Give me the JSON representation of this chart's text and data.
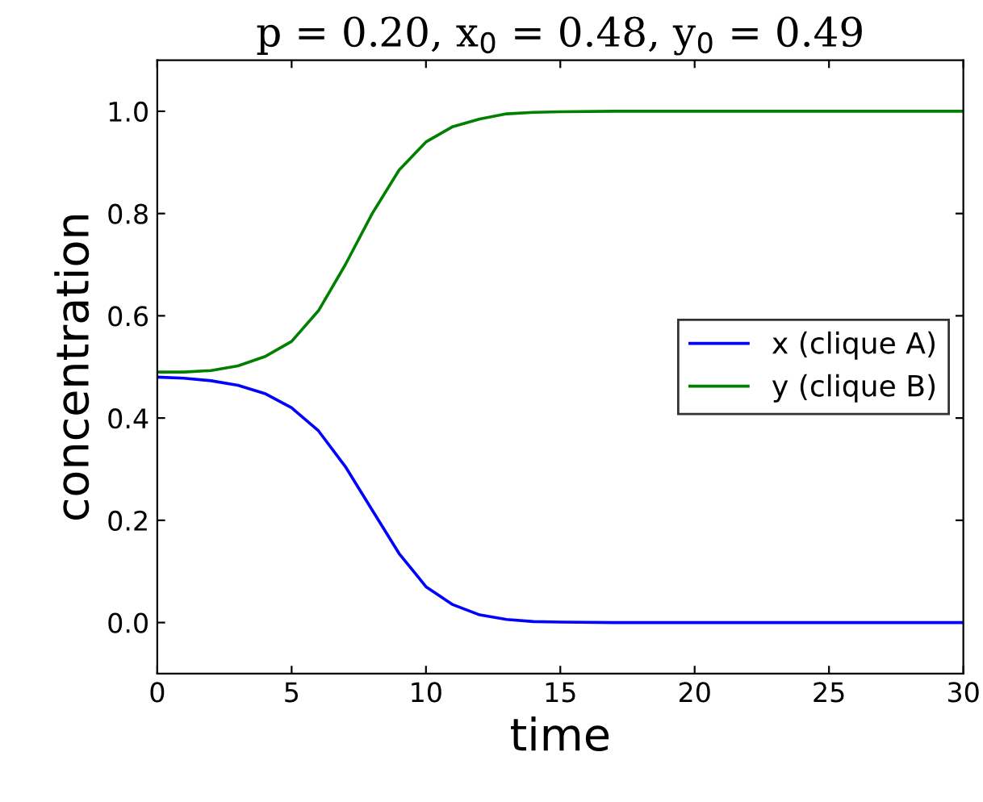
{
  "chart_data": {
    "type": "line",
    "title": "p = 0.20, x$_{0}$ = 0.48, y$_{0}$ = 0.49",
    "xlabel": "time",
    "ylabel": "concentration",
    "x": [
      0,
      1,
      2,
      3,
      4,
      5,
      6,
      7,
      8,
      9,
      10,
      11,
      12,
      13,
      14,
      15,
      17,
      20,
      25,
      30
    ],
    "series": [
      {
        "name": "x (clique A)",
        "color": "#0000ff",
        "values": [
          0.48,
          0.478,
          0.473,
          0.464,
          0.448,
          0.42,
          0.375,
          0.305,
          0.22,
          0.135,
          0.07,
          0.035,
          0.015,
          0.006,
          0.002,
          0.001,
          0,
          0,
          0,
          0
        ]
      },
      {
        "name": "y (clique B)",
        "color": "#008000",
        "values": [
          0.49,
          0.49,
          0.493,
          0.502,
          0.52,
          0.55,
          0.61,
          0.7,
          0.8,
          0.885,
          0.94,
          0.97,
          0.985,
          0.995,
          0.998,
          0.999,
          1,
          1,
          1,
          1
        ]
      }
    ],
    "xlim": [
      0,
      30
    ],
    "ylim": [
      -0.1,
      1.1
    ],
    "xticks": [
      0,
      5,
      10,
      15,
      20,
      25,
      30
    ],
    "yticks": [
      {
        "value": 0,
        "label": "0.0"
      },
      {
        "value": 0.2,
        "label": "0.2"
      },
      {
        "value": 0.4,
        "label": "0.4"
      },
      {
        "value": 0.6,
        "label": "0.6"
      },
      {
        "value": 0.8,
        "label": "0.8"
      },
      {
        "value": 1.0,
        "label": "1.0"
      }
    ],
    "legend": "center right",
    "grid": false
  }
}
